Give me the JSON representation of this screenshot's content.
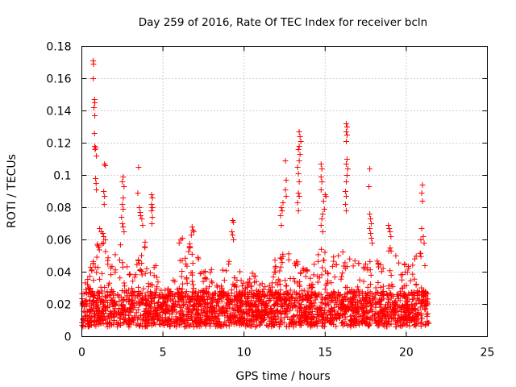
{
  "chart_data": {
    "type": "scatter",
    "title": "Day 259 of 2016, Rate Of TEC Index for receiver bcln",
    "xlabel": "GPS time / hours",
    "ylabel": "ROTI / TECUs",
    "xlim": [
      0,
      25
    ],
    "ylim": [
      0,
      0.18
    ],
    "xticks": [
      "0",
      "5",
      "10",
      "15",
      "20",
      "25"
    ],
    "yticks": [
      "0",
      "0.02",
      "0.04",
      "0.06",
      "0.08",
      "0.1",
      "0.12",
      "0.14",
      "0.16",
      "0.18"
    ],
    "grid": true,
    "marker": "+",
    "color": "#ff0000",
    "series": [
      {
        "name": "ROTI",
        "points": [
          [
            0.7,
            0.171
          ],
          [
            0.72,
            0.169
          ],
          [
            0.7,
            0.16
          ],
          [
            0.78,
            0.147
          ],
          [
            0.8,
            0.145
          ],
          [
            0.75,
            0.142
          ],
          [
            0.8,
            0.137
          ],
          [
            0.78,
            0.126
          ],
          [
            0.8,
            0.118
          ],
          [
            0.82,
            0.116
          ],
          [
            0.85,
            0.117
          ],
          [
            0.9,
            0.112
          ],
          [
            1.4,
            0.107
          ],
          [
            1.45,
            0.106
          ],
          [
            0.85,
            0.098
          ],
          [
            0.88,
            0.095
          ],
          [
            0.9,
            0.091
          ],
          [
            1.35,
            0.09
          ],
          [
            1.4,
            0.087
          ],
          [
            1.38,
            0.082
          ],
          [
            2.55,
            0.099
          ],
          [
            2.5,
            0.096
          ],
          [
            2.6,
            0.093
          ],
          [
            2.55,
            0.086
          ],
          [
            2.5,
            0.082
          ],
          [
            2.55,
            0.079
          ],
          [
            2.45,
            0.074
          ],
          [
            2.5,
            0.07
          ],
          [
            2.55,
            0.068
          ],
          [
            2.6,
            0.065
          ],
          [
            3.5,
            0.105
          ],
          [
            3.45,
            0.089
          ],
          [
            3.55,
            0.08
          ],
          [
            3.6,
            0.077
          ],
          [
            3.62,
            0.075
          ],
          [
            3.7,
            0.073
          ],
          [
            3.75,
            0.069
          ],
          [
            4.3,
            0.088
          ],
          [
            4.35,
            0.086
          ],
          [
            4.3,
            0.082
          ],
          [
            4.35,
            0.08
          ],
          [
            4.3,
            0.078
          ],
          [
            4.35,
            0.074
          ],
          [
            4.32,
            0.07
          ],
          [
            1.1,
            0.067
          ],
          [
            1.2,
            0.065
          ],
          [
            1.3,
            0.064
          ],
          [
            1.35,
            0.062
          ],
          [
            1.45,
            0.06
          ],
          [
            6.8,
            0.068
          ],
          [
            6.85,
            0.066
          ],
          [
            6.9,
            0.065
          ],
          [
            6.75,
            0.063
          ],
          [
            6.2,
            0.061
          ],
          [
            6.1,
            0.06
          ],
          [
            6.0,
            0.058
          ],
          [
            9.3,
            0.072
          ],
          [
            9.35,
            0.071
          ],
          [
            9.25,
            0.065
          ],
          [
            9.3,
            0.063
          ],
          [
            9.35,
            0.06
          ],
          [
            12.55,
            0.109
          ],
          [
            12.6,
            0.097
          ],
          [
            12.55,
            0.091
          ],
          [
            12.6,
            0.087
          ],
          [
            12.4,
            0.083
          ],
          [
            12.3,
            0.08
          ],
          [
            12.35,
            0.078
          ],
          [
            12.25,
            0.075
          ],
          [
            12.3,
            0.069
          ],
          [
            13.4,
            0.127
          ],
          [
            13.45,
            0.124
          ],
          [
            13.5,
            0.121
          ],
          [
            13.4,
            0.118
          ],
          [
            13.35,
            0.116
          ],
          [
            13.45,
            0.113
          ],
          [
            13.4,
            0.109
          ],
          [
            13.3,
            0.105
          ],
          [
            13.35,
            0.101
          ],
          [
            13.4,
            0.096
          ],
          [
            13.35,
            0.089
          ],
          [
            13.4,
            0.087
          ],
          [
            13.3,
            0.083
          ],
          [
            13.35,
            0.078
          ],
          [
            14.75,
            0.107
          ],
          [
            14.8,
            0.104
          ],
          [
            14.75,
            0.099
          ],
          [
            14.8,
            0.096
          ],
          [
            14.75,
            0.091
          ],
          [
            15.0,
            0.088
          ],
          [
            15.05,
            0.087
          ],
          [
            14.9,
            0.084
          ],
          [
            14.95,
            0.079
          ],
          [
            14.85,
            0.076
          ],
          [
            14.8,
            0.073
          ],
          [
            14.75,
            0.069
          ],
          [
            14.85,
            0.065
          ],
          [
            16.3,
            0.132
          ],
          [
            16.35,
            0.13
          ],
          [
            16.3,
            0.127
          ],
          [
            16.35,
            0.125
          ],
          [
            16.3,
            0.121
          ],
          [
            16.35,
            0.11
          ],
          [
            16.3,
            0.107
          ],
          [
            16.4,
            0.104
          ],
          [
            16.35,
            0.1
          ],
          [
            16.3,
            0.096
          ],
          [
            16.25,
            0.09
          ],
          [
            16.3,
            0.087
          ],
          [
            16.25,
            0.082
          ],
          [
            16.3,
            0.078
          ],
          [
            17.75,
            0.104
          ],
          [
            17.7,
            0.093
          ],
          [
            17.75,
            0.076
          ],
          [
            17.8,
            0.073
          ],
          [
            17.85,
            0.07
          ],
          [
            17.75,
            0.067
          ],
          [
            17.8,
            0.064
          ],
          [
            17.85,
            0.061
          ],
          [
            17.9,
            0.058
          ],
          [
            18.9,
            0.069
          ],
          [
            18.95,
            0.067
          ],
          [
            19.0,
            0.065
          ],
          [
            19.05,
            0.062
          ],
          [
            21.0,
            0.094
          ],
          [
            20.95,
            0.089
          ],
          [
            21.0,
            0.084
          ],
          [
            20.95,
            0.067
          ],
          [
            21.05,
            0.062
          ],
          [
            20.9,
            0.06
          ],
          [
            21.1,
            0.058
          ]
        ]
      }
    ]
  }
}
